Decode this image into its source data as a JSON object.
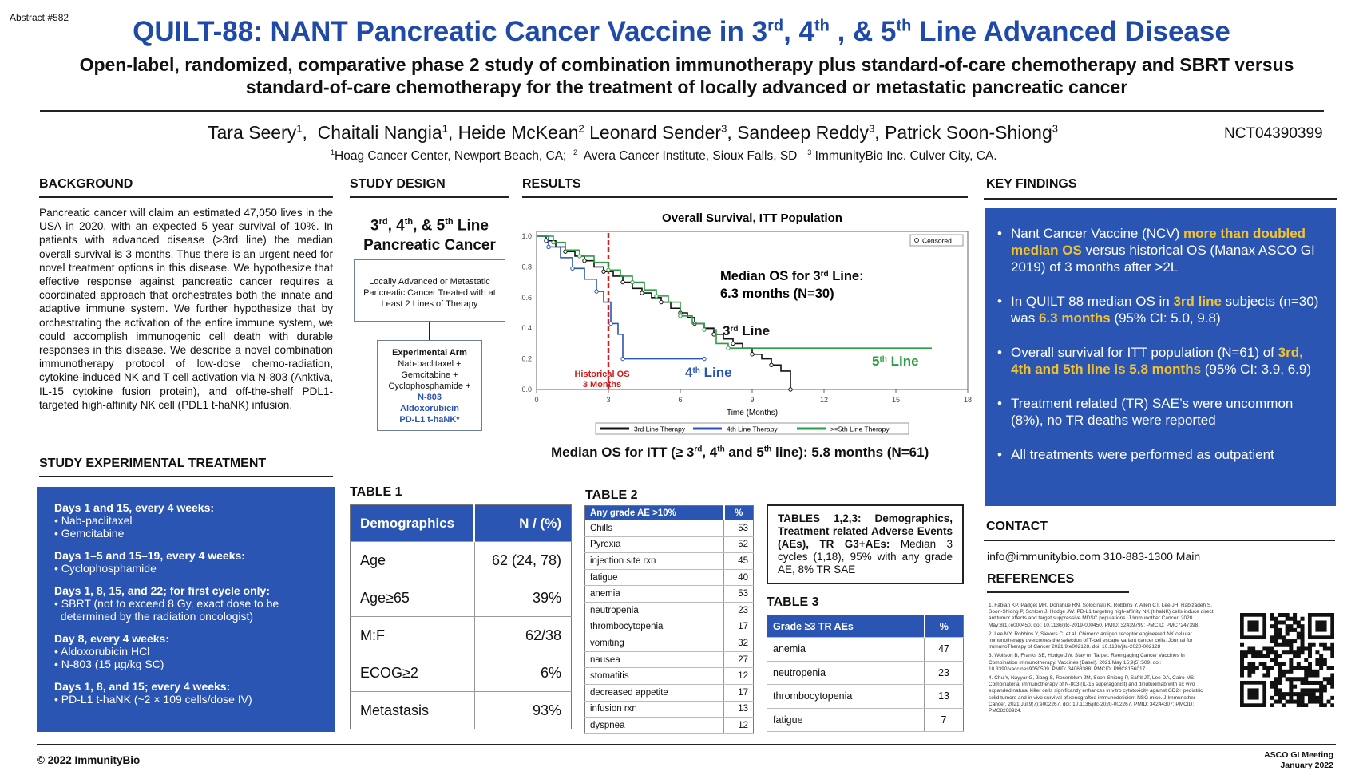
{
  "abstract_no": "Abstract #582",
  "title": {
    "pre": "QUILT-88: NANT Pancreatic Cancer Vaccine in 3",
    "s1": "rd",
    "m1": ", 4",
    "s2": "th",
    "m2": " , & 5",
    "s3": "th",
    "post": " Line Advanced Disease"
  },
  "subtitle": "Open-label, randomized, comparative phase 2 study of combination immunotherapy plus standard-of-care chemotherapy and SBRT versus standard-of-care chemotherapy for the treatment of locally advanced or metastatic pancreatic cancer",
  "authors": [
    {
      "name": "Tara Seery",
      "aff": "1",
      "sep": ",  "
    },
    {
      "name": "Chaitali Nangia",
      "aff": "1",
      "sep": ", "
    },
    {
      "name": "Heide McKean",
      "aff": "2",
      "sep": " "
    },
    {
      "name": "Leonard Sender",
      "aff": "3",
      "sep": ", "
    },
    {
      "name": "Sandeep Reddy",
      "aff": "3",
      "sep": ", "
    },
    {
      "name": "Patrick Soon-Shiong",
      "aff": "3",
      "sep": ""
    }
  ],
  "nct": "NCT04390399",
  "affiliations": [
    {
      "num": "1",
      "text": "Hoag Cancer Center, Newport Beach, CA;  "
    },
    {
      "num": "2",
      "text": "  Avera Cancer Institute, Sioux Falls, SD   "
    },
    {
      "num": "3",
      "text": " ImmunityBio Inc. Culver City, CA."
    }
  ],
  "background": {
    "heading": "BACKGROUND",
    "text": "Pancreatic cancer will claim an estimated 47,050 lives in the USA in 2020, with an expected 5 year survival of 10%. In patients with advanced disease (>3rd line) the median overall survival is 3 months. Thus there is an urgent need for novel treatment options in this disease. We hypothesize that effective response against pancreatic cancer requires a coordinated approach that orchestrates both the innate and adaptive immune system. We further hypothesize that by orchestrating the activation of the entire immune system, we could accomplish immunogenic cell death with durable responses in this disease. We describe a novel combination immunotherapy protocol of low-dose chemo-radiation, cytokine-induced NK and T cell activation via N-803 (Anktiva, IL-15 cytokine fusion protein), and off-the-shelf PDL1-targeted high-affinity NK cell (PDL1 t-haNK) infusion."
  },
  "treatment": {
    "heading": "STUDY EXPERIMENTAL TREATMENT",
    "groups": [
      {
        "head": "Days 1 and 15, every 4 weeks:",
        "items": [
          "• Nab-paclitaxel",
          "• Gemcitabine"
        ]
      },
      {
        "head": "Days 1–5 and 15–19, every 4 weeks:",
        "items": [
          "• Cyclophosphamide"
        ]
      },
      {
        "head": "Days 1, 8, 15, and 22; for first cycle only:",
        "items": [
          "• SBRT (not to exceed 8 Gy, exact dose to be",
          "  determined by the radiation oncologist)"
        ]
      },
      {
        "head": "Day 8, every 4 weeks:",
        "items": [
          "• Aldoxorubicin HCl",
          "• N-803 (15 µg/kg SC)"
        ]
      },
      {
        "head": "Days 1, 8, and 15; every 4 weeks:",
        "items": [
          "• PD-L1 t-haNK (~2 × 109 cells/dose IV)"
        ]
      }
    ]
  },
  "design": {
    "heading": "STUDY DESIGN",
    "title_a": "3",
    "sup_a": "rd",
    "title_b": ", 4",
    "sup_b": "th",
    "title_c": ", & 5",
    "sup_c": "th",
    "title_d": " Line",
    "title_line2": "Pancreatic Cancer",
    "box1": "Locally Advanced or Metastatic Pancreatic Cancer Treated with at Least 2 Lines of Therapy",
    "arm_title": "Experimental Arm",
    "arm_items": [
      "Nab-paclitaxel +",
      "Gemcitabine +",
      "Cyclophosphamide +"
    ],
    "arm_blue": [
      "N-803",
      "Aldoxorubicin",
      "PD-L1 t-haNK*"
    ]
  },
  "results": {
    "heading": "RESULTS",
    "itt_a": "Median OS for ITT (≥ 3",
    "itt_sup1": "rd",
    "itt_b": ", 4",
    "itt_sup2": "th",
    "itt_c": " and 5",
    "itt_sup3": "th",
    "itt_d": " line): 5.8 months (N=61)"
  },
  "chart_data": {
    "type": "line",
    "title": "Overall Survival, ITT Population",
    "xlabel": "Time (Months)",
    "ylabel": "",
    "xlim": [
      0,
      18
    ],
    "ylim": [
      0,
      1.0
    ],
    "x_ticks": [
      "0",
      "3",
      "6",
      "9",
      "12",
      "15",
      "18"
    ],
    "y_ticks": [
      "0.0",
      "0.2",
      "0.4",
      "0.6",
      "0.8",
      "1.0"
    ],
    "legend_placement": "bottom",
    "censored_label": "Censored",
    "series": [
      {
        "name": "3rd Line Therapy",
        "color": "#111111",
        "x": [
          0,
          0.4,
          0.8,
          1.2,
          1.6,
          2.0,
          2.4,
          2.8,
          3.2,
          3.6,
          4.0,
          4.4,
          4.8,
          5.2,
          5.6,
          6.0,
          6.3,
          6.6,
          7.0,
          7.4,
          7.8,
          8.2,
          8.6,
          9.0,
          9.4,
          9.8,
          10.2,
          10.6
        ],
        "y": [
          1.0,
          0.97,
          0.93,
          0.9,
          0.87,
          0.84,
          0.8,
          0.77,
          0.74,
          0.7,
          0.66,
          0.63,
          0.6,
          0.57,
          0.53,
          0.5,
          0.47,
          0.43,
          0.4,
          0.36,
          0.33,
          0.3,
          0.27,
          0.23,
          0.2,
          0.16,
          0.12,
          0.0
        ]
      },
      {
        "name": "4th Line Therapy",
        "color": "#2a55b3",
        "x": [
          0,
          0.5,
          1.0,
          1.5,
          2.0,
          2.5,
          2.8,
          3.1,
          3.4,
          3.6,
          6.5,
          7.0
        ],
        "y": [
          1.0,
          0.93,
          0.86,
          0.79,
          0.72,
          0.64,
          0.57,
          0.43,
          0.36,
          0.2,
          0.2,
          0.2
        ]
      },
      {
        "name": ">=5th Line Therapy",
        "color": "#2a9d45",
        "x": [
          0,
          0.7,
          1.2,
          1.8,
          2.4,
          3.0,
          3.5,
          4.0,
          4.5,
          5.0,
          5.5,
          6.0,
          6.5,
          7.0,
          7.5,
          8.0,
          16.5
        ],
        "y": [
          1.0,
          0.96,
          0.91,
          0.87,
          0.83,
          0.78,
          0.74,
          0.7,
          0.65,
          0.61,
          0.57,
          0.48,
          0.43,
          0.39,
          0.3,
          0.27,
          0.27
        ]
      }
    ],
    "historical_line_x": 3,
    "annotations": {
      "median_a": "Median OS for 3",
      "median_sup": "rd",
      "median_b": " Line:",
      "median_line2": "6.3 months (N=30)",
      "line3": "3",
      "line3_sup": "rd",
      "line3_post": " Line",
      "line4": "4",
      "line4_sup": "th",
      "line4_post": " Line",
      "line5": "5",
      "line5_sup": "th",
      "line5_post": " Line",
      "historical_1": "Historical OS",
      "historical_2": "3 Months"
    }
  },
  "key_findings": {
    "heading": "KEY FINDINGS",
    "items": [
      {
        "a": "Nant Cancer Vaccine (NCV) ",
        "hl": "more than doubled median OS",
        "b": " versus historical OS (Manax ASCO GI 2019) of 3 months after >2L"
      },
      {
        "a": "In QUILT 88 median OS in ",
        "hl": "3rd line",
        "b": " subjects (n=30) was ",
        "hl2": "6.3 months",
        "c": " (95% CI: 5.0, 9.8)"
      },
      {
        "a": "Overall survival for ITT population (N=61) of ",
        "hl": "3rd, 4th and 5th line is 5.8 months",
        "b": " (95% CI: 3.9, 6.9)"
      },
      {
        "a": "Treatment related (TR) SAE’s were uncommon (8%), no TR deaths were reported"
      },
      {
        "a": "All treatments were performed as outpatient"
      }
    ]
  },
  "table1": {
    "caption": "TABLE 1",
    "headers": [
      "Demographics",
      "N / (%)"
    ],
    "rows": [
      [
        "Age",
        "62 (24, 78)"
      ],
      [
        "Age≥65",
        "39%"
      ],
      [
        "M:F",
        "62/38"
      ],
      [
        "ECOG≥2",
        "6%"
      ],
      [
        "Metastasis",
        "93%"
      ]
    ]
  },
  "table2": {
    "caption": "TABLE 2",
    "headers": [
      "Any grade AE >10%",
      "%"
    ],
    "rows": [
      [
        "Chills",
        "53"
      ],
      [
        "Pyrexia",
        "52"
      ],
      [
        "injection site rxn",
        "45"
      ],
      [
        "fatigue",
        "40"
      ],
      [
        "anemia",
        "53"
      ],
      [
        "neutropenia",
        "23"
      ],
      [
        "thrombocytopenia",
        "17"
      ],
      [
        "vomiting",
        "32"
      ],
      [
        "nausea",
        "27"
      ],
      [
        "stomatitis",
        "12"
      ],
      [
        "decreased appetite",
        "17"
      ],
      [
        "infusion rxn",
        "13"
      ],
      [
        "dyspnea",
        "12"
      ]
    ]
  },
  "tables_note": {
    "bold": "TABLES 1,2,3: Demographics, Treatment related Adverse Events (AEs), TR G3+AEs:",
    "text": " Median 3 cycles (1,18), 95% with any grade AE, 8% TR SAE"
  },
  "table3": {
    "caption": "TABLE 3",
    "headers": [
      "Grade ≥3 TR AEs",
      "%"
    ],
    "rows": [
      [
        "anemia",
        "47"
      ],
      [
        "neutropenia",
        "23"
      ],
      [
        "thrombocytopenia",
        "13"
      ],
      [
        "fatigue",
        "7"
      ]
    ]
  },
  "contact": {
    "heading": "CONTACT",
    "text": "info@immunitybio.com  310-883-1300 Main"
  },
  "references": {
    "heading": "REFERENCES",
    "items": [
      "1.   Fabian KP, Padget MR, Donahue RN, Solocinski K, Robbins Y, Allen CT, Lee JH, Rabizadeh S, Soon-Shiong P, Schlom J, Hodge JW. PD-L1 targeting high-affinity NK (t-haNK) cells induce direct antitumor effects and target suppressive MDSC populations. J Immunother Cancer. 2020 May;8(1):e000450. doi: 10.1136/jitc-2019-000450. PMID: 32439799; PMCID: PMC7247398.",
      "2.   Lee MY, Robbins Y, Sievers C, et al. Chimeric antigen receptor engineered NK cellular immunotherapy overcomes the selection of T-cell escape variant cancer cells. Journal for ImmunoTherapy of Cancer 2021;9:e002128. doi: 10.1136/jitc-2020-002128",
      "3.   Wolfson B, Franks SE, Hodge JW. Stay on Target: Reengaging Cancer Vaccines in Combination Immunotherapy. Vaccines (Basel). 2021 May 15;9(5):509. doi: 10.3390/vaccines9050509. PMID: 34063388; PMCID: PMC8156017.",
      "4.   Chu Y, Nayyar G, Jiang S, Rosenblum JM, Soon-Shiong P, Safrit JT, Lee DA, Cairo MS. Combinatorial immunotherapy of N-803 (IL-15 superagonist) and dinutuximab with ex vivo expanded natural killer cells significantly enhances in vitro cytotoxicity against GD2+ pediatric solid tumors and in vivo survival of xenografted immunodeficient NSG mice. J Immunother Cancer. 2021 Jul;9(7):e002267. doi: 10.1136/jitc-2020-002267. PMID: 34244307; PMCID: PMC8268924."
    ]
  },
  "footer": {
    "copyright": "© 2022 ImmunityBio",
    "meeting": "ASCO GI Meeting",
    "date": "January 2022"
  }
}
